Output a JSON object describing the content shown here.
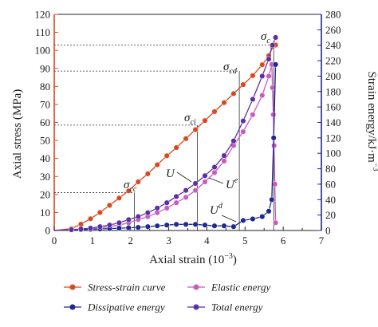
{
  "chart_data": {
    "type": "line",
    "xlabel": "Axial strain (10",
    "xlabel_sup": "−3",
    "xlabel_tail": ")",
    "ylabel_left": "Axial stress (MPa)",
    "ylabel_right": "Strain energy/kJ·m",
    "ylabel_right_sup": "−3",
    "xlim": [
      0,
      7
    ],
    "ylim_left": [
      0,
      120
    ],
    "ylim_right": [
      0,
      280
    ],
    "x_ticks": [
      "0",
      "1",
      "2",
      "3",
      "4",
      "5",
      "6",
      "7"
    ],
    "y_ticks_left": [
      "0",
      "10",
      "20",
      "30",
      "40",
      "50",
      "60",
      "70",
      "80",
      "90",
      "100",
      "110",
      "120"
    ],
    "y_ticks_right": [
      "0",
      "20",
      "40",
      "60",
      "80",
      "100",
      "120",
      "140",
      "160",
      "180",
      "200",
      "220",
      "240",
      "260",
      "280"
    ],
    "series": [
      {
        "name": "Stress-strain curve",
        "axis": "left",
        "color": "#d9481f",
        "x": [
          0,
          0.45,
          0.7,
          0.95,
          1.2,
          1.45,
          1.7,
          1.95,
          2.2,
          2.45,
          2.7,
          2.95,
          3.2,
          3.45,
          3.7,
          3.95,
          4.2,
          4.45,
          4.7,
          4.95,
          5.2,
          5.45,
          5.62,
          5.72,
          5.8
        ],
        "values": [
          0,
          1,
          3.5,
          6.5,
          10,
          14,
          18,
          22,
          27,
          31.5,
          36.5,
          41.5,
          46,
          51,
          56,
          61,
          66,
          71,
          76,
          81,
          86,
          92,
          97,
          102,
          103
        ]
      },
      {
        "name": "Elastic energy",
        "axis": "right",
        "color": "#c75bbf",
        "x": [
          0,
          0.45,
          0.7,
          0.95,
          1.2,
          1.45,
          1.7,
          1.95,
          2.2,
          2.45,
          2.7,
          2.95,
          3.2,
          3.45,
          3.7,
          3.95,
          4.2,
          4.45,
          4.7,
          4.95,
          5.2,
          5.45,
          5.62,
          5.7,
          5.72,
          5.74,
          5.76,
          5.78,
          5.8
        ],
        "values": [
          0,
          0.5,
          1,
          2,
          3,
          5,
          7,
          10,
          14,
          18,
          23,
          29,
          36,
          43,
          52,
          63,
          75,
          90,
          110,
          128,
          150,
          175,
          200,
          215,
          185,
          150,
          110,
          60,
          10
        ]
      },
      {
        "name": "Dissipative energy",
        "axis": "right",
        "color": "#1e2a8c",
        "x": [
          0,
          0.45,
          0.7,
          0.95,
          1.2,
          1.45,
          1.7,
          1.95,
          2.2,
          2.45,
          2.7,
          2.95,
          3.2,
          3.45,
          3.7,
          3.95,
          4.2,
          4.45,
          4.7,
          4.95,
          5.2,
          5.45,
          5.62,
          5.7,
          5.75,
          5.8
        ],
        "values": [
          0,
          0.5,
          1,
          1.5,
          2,
          2.5,
          3,
          3.5,
          4,
          5,
          6,
          7,
          8,
          8,
          8,
          7,
          6,
          6,
          5,
          13,
          15,
          18,
          25,
          40,
          120,
          215
        ]
      },
      {
        "name": "Total energy",
        "axis": "right",
        "color": "#5b2ea6",
        "x": [
          0,
          0.45,
          0.7,
          0.95,
          1.2,
          1.45,
          1.7,
          1.95,
          2.2,
          2.45,
          2.7,
          2.95,
          3.2,
          3.45,
          3.7,
          3.95,
          4.2,
          4.45,
          4.7,
          4.95,
          5.2,
          5.45,
          5.62,
          5.72,
          5.8
        ],
        "values": [
          0,
          1,
          2,
          3,
          5,
          7,
          10,
          14,
          18,
          23,
          29,
          36,
          44,
          52,
          61,
          71,
          82,
          97,
          116,
          142,
          170,
          200,
          222,
          240,
          250
        ]
      }
    ],
    "annotations": [
      {
        "symbol": "σ",
        "sub": "c",
        "x": 5.75,
        "y_left": 103
      },
      {
        "symbol": "σ",
        "sub": "cd",
        "x": 4.85,
        "y_left": 88.5
      },
      {
        "symbol": "σ",
        "sub": "ci",
        "x": 3.75,
        "y_left": 58.5
      },
      {
        "symbol": "σ",
        "sub": "cc",
        "x": 2.1,
        "y_left": 21
      },
      {
        "symbol": "U",
        "sup": ""
      },
      {
        "symbol": "U",
        "sup": "e"
      },
      {
        "symbol": "U",
        "sup": "d"
      }
    ],
    "legend": [
      {
        "label": "Stress-strain curve",
        "color": "#d9481f"
      },
      {
        "label": "Elastic energy",
        "color": "#c75bbf"
      },
      {
        "label": "Dissipative energy",
        "color": "#1e2a8c"
      },
      {
        "label": "Total energy",
        "color": "#5b2ea6"
      }
    ],
    "left_axis_color": "#d9481f",
    "right_axis_color": "#1e2a8c",
    "grid": false,
    "legend_placement": "bottom"
  }
}
